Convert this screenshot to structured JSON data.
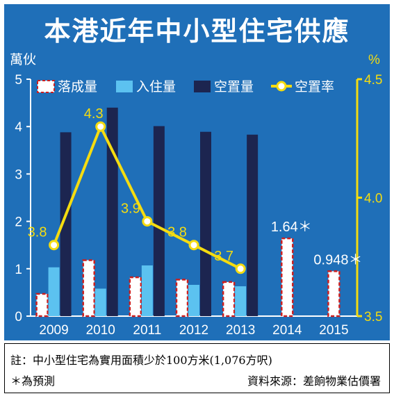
{
  "chart_data": {
    "type": "bar",
    "title": "本港近年中小型住宅供應",
    "categories": [
      "2009",
      "2010",
      "2011",
      "2012",
      "2013",
      "2014",
      "2015"
    ],
    "y_left": {
      "label": "萬伙",
      "range": [
        0,
        5
      ],
      "ticks": [
        "0",
        "1",
        "2",
        "3",
        "4",
        "5"
      ]
    },
    "y_right": {
      "label": "%",
      "range": [
        3.5,
        4.5
      ],
      "ticks": [
        "3.5",
        "4.0",
        "4.5"
      ]
    },
    "series": [
      {
        "name": "落成量",
        "type": "bar",
        "values": [
          0.47,
          1.18,
          0.82,
          0.77,
          0.72,
          1.64,
          0.948
        ]
      },
      {
        "name": "入住量",
        "type": "bar",
        "values": [
          1.03,
          0.58,
          1.07,
          0.66,
          0.63,
          null,
          null
        ]
      },
      {
        "name": "空置量",
        "type": "bar",
        "values": [
          3.88,
          4.4,
          4.01,
          3.89,
          3.83,
          null,
          null
        ]
      },
      {
        "name": "空置率",
        "type": "line",
        "axis": "right",
        "values": [
          3.8,
          4.3,
          3.9,
          3.8,
          3.7,
          null,
          null
        ]
      }
    ],
    "data_labels": {
      "completion": [
        "",
        "",
        "",
        "",
        "",
        "1.64＊",
        "0.948＊"
      ],
      "vacancy_rate": [
        "3.8",
        "4.3",
        "3.9",
        "3.8",
        "3.7",
        "",
        ""
      ]
    },
    "legend_placement": "top",
    "grid": false
  },
  "colors": {
    "background": "#1f6fb8",
    "completion_fill": "#ffffff",
    "completion_border": "#cc1f1f",
    "occupation": "#5cc2f0",
    "vacant": "#1c2550",
    "vacancy_rate": "#f5dc10"
  },
  "notes": {
    "line1": "註：中小型住宅為實用面積少於100方米(1,076方呎)",
    "line2": "＊為預測",
    "source": "資料來源：差餉物業估價署"
  }
}
